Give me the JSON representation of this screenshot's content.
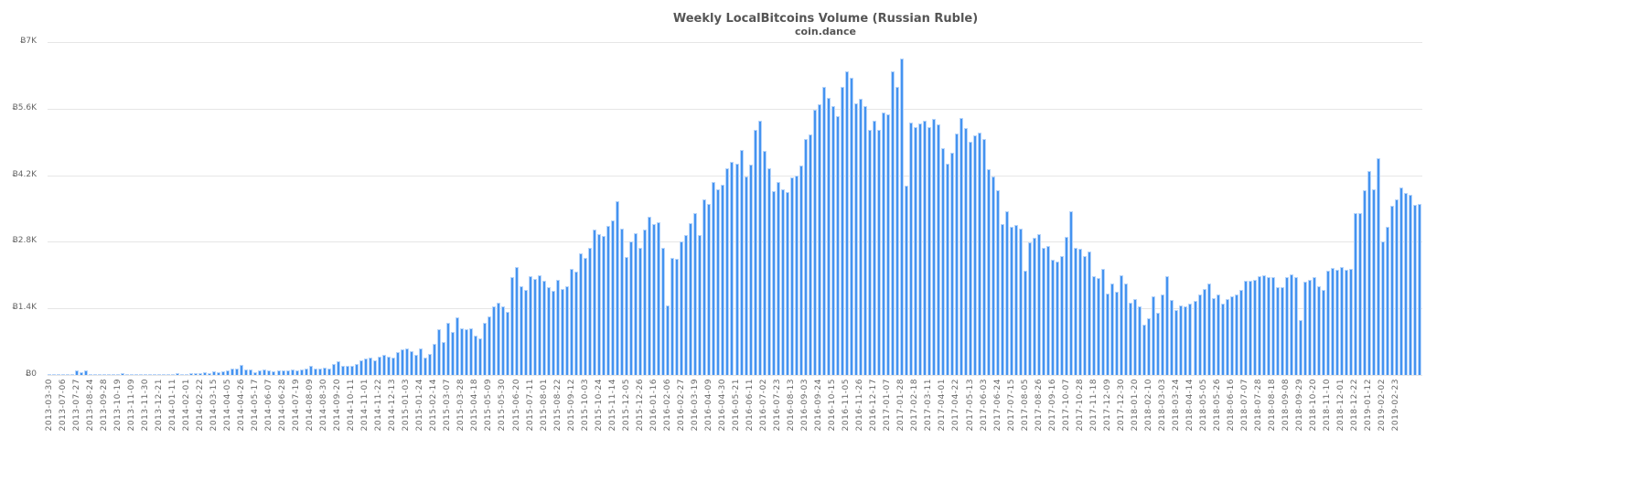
{
  "chart_data": {
    "type": "bar",
    "title": "Weekly LocalBitcoins Volume (Russian Ruble)",
    "subtitle": "coin.dance",
    "xlabel": "",
    "ylabel": "",
    "ylim": [
      0,
      7000
    ],
    "y_ticks": [
      "Ƀ0",
      "Ƀ1.4K",
      "Ƀ2.8K",
      "Ƀ4.2K",
      "Ƀ5.6K",
      "Ƀ7K"
    ],
    "grid": true,
    "legend": false,
    "bar_color": "#4493f0",
    "x_tick_labels": [
      "2013-03-30",
      "2013-07-06",
      "2013-07-27",
      "2013-08-24",
      "2013-09-28",
      "2013-10-19",
      "2013-11-09",
      "2013-11-30",
      "2013-12-21",
      "2014-01-11",
      "2014-02-01",
      "2014-02-22",
      "2014-03-15",
      "2014-04-05",
      "2014-04-26",
      "2014-05-17",
      "2014-06-07",
      "2014-06-28",
      "2014-07-19",
      "2014-08-09",
      "2014-08-30",
      "2014-09-20",
      "2014-10-11",
      "2014-11-01",
      "2014-11-22",
      "2014-12-13",
      "2015-01-03",
      "2015-01-24",
      "2015-02-14",
      "2015-03-07",
      "2015-03-28",
      "2015-04-18",
      "2015-05-09",
      "2015-05-30",
      "2015-06-20",
      "2015-07-11",
      "2015-08-01",
      "2015-08-22",
      "2015-09-12",
      "2015-10-03",
      "2015-10-24",
      "2015-11-14",
      "2015-12-05",
      "2015-12-26",
      "2016-01-16",
      "2016-02-06",
      "2016-02-27",
      "2016-03-19",
      "2016-04-09",
      "2016-04-30",
      "2016-05-21",
      "2016-06-11",
      "2016-07-02",
      "2016-07-23",
      "2016-08-13",
      "2016-09-03",
      "2016-09-24",
      "2016-10-15",
      "2016-11-05",
      "2016-11-26",
      "2016-12-17",
      "2017-01-07",
      "2017-01-28",
      "2017-02-18",
      "2017-03-11",
      "2017-04-01",
      "2017-04-22",
      "2017-05-13",
      "2017-06-03",
      "2017-06-24",
      "2017-07-15",
      "2017-08-05",
      "2017-08-26",
      "2017-09-16",
      "2017-10-07",
      "2017-10-28",
      "2017-11-18",
      "2017-12-09",
      "2017-12-30",
      "2018-01-20",
      "2018-02-10",
      "2018-03-03",
      "2018-03-24",
      "2018-04-14",
      "2018-05-05",
      "2018-05-26",
      "2018-06-16",
      "2018-07-07",
      "2018-07-28",
      "2018-08-18",
      "2018-09-08",
      "2018-09-29",
      "2018-10-20",
      "2018-11-10",
      "2018-12-01",
      "2018-12-22",
      "2019-01-12",
      "2019-02-02",
      "2019-02-23"
    ],
    "values_k": [
      0.01,
      0.01,
      0.01,
      0.02,
      0.01,
      0.01,
      0.1,
      0.05,
      0.09,
      0.01,
      0.01,
      0.01,
      0.01,
      0.01,
      0.01,
      0.02,
      0.03,
      0.02,
      0.02,
      0.02,
      0.02,
      0.02,
      0.02,
      0.01,
      0.01,
      0.02,
      0.02,
      0.02,
      0.03,
      0.02,
      0.02,
      0.03,
      0.04,
      0.03,
      0.05,
      0.03,
      0.08,
      0.05,
      0.07,
      0.1,
      0.13,
      0.13,
      0.22,
      0.12,
      0.12,
      0.06,
      0.09,
      0.11,
      0.09,
      0.07,
      0.09,
      0.09,
      0.09,
      0.11,
      0.1,
      0.11,
      0.13,
      0.19,
      0.13,
      0.13,
      0.16,
      0.13,
      0.24,
      0.28,
      0.2,
      0.2,
      0.2,
      0.24,
      0.3,
      0.35,
      0.36,
      0.3,
      0.38,
      0.42,
      0.38,
      0.37,
      0.48,
      0.54,
      0.55,
      0.5,
      0.42,
      0.55,
      0.36,
      0.45,
      0.66,
      0.97,
      0.7,
      1.1,
      0.9,
      1.22,
      0.98,
      0.96,
      0.98,
      0.82,
      0.76,
      1.1,
      1.23,
      1.44,
      1.52,
      1.44,
      1.33,
      2.06,
      2.26,
      1.87,
      1.78,
      2.08,
      2.01,
      2.1,
      1.98,
      1.84,
      1.76,
      2.0,
      1.8,
      1.87,
      2.24,
      2.18,
      2.56,
      2.47,
      2.68,
      3.05,
      2.96,
      2.93,
      3.14,
      3.25,
      3.66,
      3.07,
      2.48,
      2.81,
      2.98,
      2.68,
      3.06,
      3.33,
      3.17,
      3.21,
      2.68,
      1.47,
      2.47,
      2.45,
      2.8,
      2.94,
      3.2,
      3.4,
      2.95,
      3.7,
      3.6,
      4.06,
      3.9,
      4.0,
      4.34,
      4.48,
      4.45,
      4.74,
      4.17,
      4.42,
      5.15,
      5.35,
      4.72,
      4.34,
      3.87,
      4.05,
      3.91,
      3.84,
      4.15,
      4.2,
      4.4,
      4.97,
      5.05,
      5.57,
      5.7,
      6.05,
      5.82,
      5.66,
      5.45,
      6.05,
      6.39,
      6.25,
      5.72,
      5.8,
      5.65,
      5.15,
      5.35,
      5.16,
      5.52,
      5.48,
      6.39,
      6.05,
      6.65,
      3.98,
      5.3,
      5.22,
      5.28,
      5.35,
      5.22,
      5.38,
      5.27,
      4.77,
      4.45,
      4.67,
      5.07,
      5.4,
      5.19,
      4.9,
      5.04,
      5.1,
      4.97,
      4.32,
      4.17,
      3.89,
      3.17,
      3.45,
      3.11,
      3.15,
      3.07,
      2.19,
      2.79,
      2.88,
      2.97,
      2.68,
      2.72,
      2.42,
      2.39,
      2.5,
      2.9,
      3.44,
      2.67,
      2.65,
      2.5,
      2.6,
      2.07,
      2.04,
      2.24,
      1.71,
      1.93,
      1.75,
      2.09,
      1.92,
      1.52,
      1.6,
      1.45,
      1.05,
      1.2,
      1.65,
      1.3,
      1.7,
      2.08,
      1.57,
      1.37,
      1.47,
      1.45,
      1.5,
      1.55,
      1.7,
      1.8,
      1.92,
      1.62,
      1.7,
      1.5,
      1.6,
      1.65,
      1.7,
      1.79,
      1.98,
      1.98,
      2.0,
      2.08,
      2.1,
      2.06,
      2.05,
      1.85,
      1.84,
      2.05,
      2.12,
      2.05,
      1.16,
      1.97,
      2.0,
      2.06,
      1.87,
      1.79,
      2.2,
      2.25,
      2.21,
      2.27,
      2.21,
      2.24,
      3.41,
      3.4,
      3.89,
      4.28,
      3.9,
      4.55,
      2.81,
      3.11,
      3.56,
      3.7,
      3.95,
      3.82,
      3.79,
      3.58,
      3.6
    ]
  },
  "header": {
    "title": "Weekly LocalBitcoins Volume (Russian Ruble)",
    "subtitle": "coin.dance"
  }
}
